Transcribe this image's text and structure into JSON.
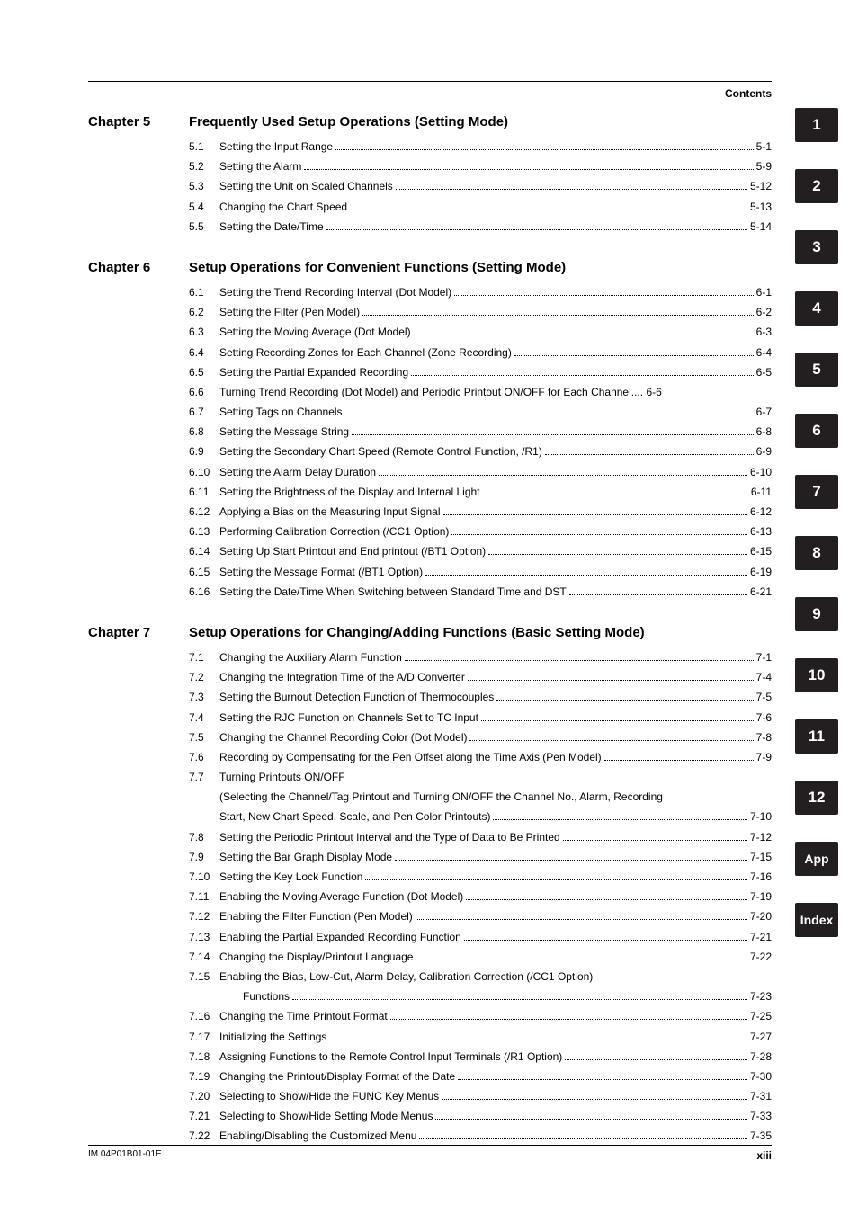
{
  "header": {
    "contents_label": "Contents"
  },
  "footer": {
    "left": "IM 04P01B01-01E",
    "right": "xiii"
  },
  "tabs": [
    "1",
    "2",
    "3",
    "4",
    "5",
    "6",
    "7",
    "8",
    "9",
    "10",
    "11",
    "12",
    "App",
    "Index"
  ],
  "chapters": [
    {
      "label": "Chapter 5",
      "title": "Frequently Used Setup Operations (Setting Mode)",
      "entries": [
        {
          "num": "5.1",
          "text": "Setting the Input Range",
          "page": "5-1"
        },
        {
          "num": "5.2",
          "text": "Setting the Alarm",
          "page": "5-9"
        },
        {
          "num": "5.3",
          "text": "Setting the Unit on Scaled Channels",
          "page": "5-12"
        },
        {
          "num": "5.4",
          "text": "Changing the Chart Speed",
          "page": "5-13"
        },
        {
          "num": "5.5",
          "text": "Setting the Date/Time",
          "page": "5-14"
        }
      ]
    },
    {
      "label": "Chapter 6",
      "title": "Setup Operations for Convenient Functions (Setting Mode)",
      "entries": [
        {
          "num": "6.1",
          "text": "Setting the Trend Recording Interval (Dot Model)",
          "page": "6-1"
        },
        {
          "num": "6.2",
          "text": "Setting the Filter (Pen Model)",
          "page": "6-2"
        },
        {
          "num": "6.3",
          "text": "Setting the Moving Average (Dot Model)",
          "page": "6-3"
        },
        {
          "num": "6.4",
          "text": "Setting Recording Zones for Each Channel (Zone Recording)",
          "page": "6-4"
        },
        {
          "num": "6.5",
          "text": "Setting the Partial Expanded Recording",
          "page": "6-5"
        },
        {
          "num": "6.6",
          "text": "Turning Trend Recording (Dot Model) and Periodic Printout ON/OFF for Each Channel",
          "nodots": true,
          "page": "6-6"
        },
        {
          "num": "6.7",
          "text": "Setting Tags on Channels",
          "page": "6-7"
        },
        {
          "num": "6.8",
          "text": "Setting the Message String",
          "page": "6-8"
        },
        {
          "num": "6.9",
          "text": "Setting the Secondary Chart Speed (Remote Control Function, /R1)",
          "page": "6-9"
        },
        {
          "num": "6.10",
          "text": "Setting the Alarm Delay Duration",
          "page": "6-10"
        },
        {
          "num": "6.11",
          "text": "Setting the Brightness of the Display and Internal Light",
          "page": "6-11"
        },
        {
          "num": "6.12",
          "text": "Applying a Bias on the Measuring Input Signal",
          "page": "6-12"
        },
        {
          "num": "6.13",
          "text": "Performing Calibration Correction (/CC1 Option)",
          "page": "6-13"
        },
        {
          "num": "6.14",
          "text": "Setting Up Start Printout and End printout (/BT1 Option)",
          "page": "6-15"
        },
        {
          "num": "6.15",
          "text": "Setting the Message Format (/BT1 Option)",
          "page": "6-19"
        },
        {
          "num": "6.16",
          "text": "Setting the Date/Time When Switching between Standard Time and DST",
          "page": "6-21"
        }
      ]
    },
    {
      "label": "Chapter 7",
      "title": "Setup Operations for Changing/Adding Functions (Basic Setting Mode)",
      "entries": [
        {
          "num": "7.1",
          "text": "Changing the Auxiliary Alarm Function",
          "page": "7-1"
        },
        {
          "num": "7.2",
          "text": "Changing the Integration Time of the A/D Converter",
          "page": "7-4"
        },
        {
          "num": "7.3",
          "text": "Setting the Burnout Detection Function of Thermocouples",
          "page": "7-5"
        },
        {
          "num": "7.4",
          "text": "Setting the RJC Function on Channels Set to TC Input",
          "page": "7-6"
        },
        {
          "num": "7.5",
          "text": "Changing the Channel Recording Color (Dot Model)",
          "page": "7-8"
        },
        {
          "num": "7.6",
          "text": "Recording by Compensating for the Pen Offset along the Time Axis (Pen Model)",
          "page": "7-9"
        },
        {
          "num": "7.7",
          "text": "Turning Printouts ON/OFF",
          "nopage": true,
          "cont": [
            {
              "text": "(Selecting the Channel/Tag Printout and Turning ON/OFF the Channel No., Alarm, Recording",
              "nopage": true
            },
            {
              "text": "Start, New Chart Speed, Scale, and Pen Color Printouts)",
              "page": "7-10"
            }
          ]
        },
        {
          "num": "7.8",
          "text": "Setting the Periodic Printout Interval and the Type of Data to Be Printed",
          "page": "7-12"
        },
        {
          "num": "7.9",
          "text": "Setting the Bar Graph Display Mode",
          "page": "7-15"
        },
        {
          "num": "7.10",
          "text": "Setting the Key Lock Function",
          "page": "7-16"
        },
        {
          "num": "7.11",
          "text": "Enabling the Moving Average Function (Dot Model)",
          "page": "7-19"
        },
        {
          "num": "7.12",
          "text": "Enabling the Filter Function (Pen Model)",
          "page": "7-20"
        },
        {
          "num": "7.13",
          "text": "Enabling the Partial Expanded Recording Function",
          "page": "7-21"
        },
        {
          "num": "7.14",
          "text": "Changing the Display/Printout Language",
          "page": "7-22"
        },
        {
          "num": "7.15",
          "text": "Enabling the Bias, Low-Cut, Alarm Delay, Calibration Correction (/CC1 Option)",
          "nopage": true,
          "cont": [
            {
              "text": "Functions",
              "page": "7-23",
              "indent": true
            }
          ]
        },
        {
          "num": "7.16",
          "text": "Changing the Time Printout Format",
          "page": "7-25"
        },
        {
          "num": "7.17",
          "text": "Initializing the Settings",
          "page": "7-27"
        },
        {
          "num": "7.18",
          "text": "Assigning Functions to the Remote Control Input Terminals (/R1 Option)",
          "page": "7-28"
        },
        {
          "num": "7.19",
          "text": "Changing the Printout/Display Format of the Date",
          "page": "7-30"
        },
        {
          "num": "7.20",
          "text": "Selecting to Show/Hide the FUNC Key Menus",
          "page": "7-31"
        },
        {
          "num": "7.21",
          "text": "Selecting to Show/Hide Setting Mode Menus",
          "page": "7-33"
        },
        {
          "num": "7.22",
          "text": "Enabling/Disabling the Customized Menu",
          "page": "7-35"
        }
      ]
    }
  ]
}
